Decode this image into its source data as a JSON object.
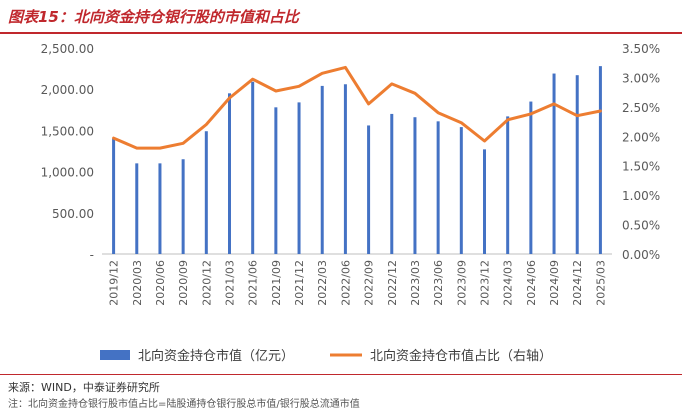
{
  "title": "图表15：北向资金持仓银行股的市值和占比",
  "chart_data": {
    "type": "bar",
    "categories": [
      "2019/12",
      "2020/03",
      "2020/06",
      "2020/09",
      "2020/12",
      "2021/03",
      "2021/06",
      "2021/09",
      "2021/12",
      "2022/03",
      "2022/06",
      "2022/09",
      "2022/12",
      "2023/03",
      "2023/06",
      "2023/09",
      "2023/12",
      "2024/03",
      "2024/06",
      "2024/09",
      "2024/12",
      "2025/03"
    ],
    "series": [
      {
        "name": "北向资金持仓市值（亿元）",
        "type": "bar",
        "axis": "left",
        "color": "#4472c4",
        "values": [
          1400,
          1100,
          1100,
          1150,
          1490,
          1950,
          2090,
          1780,
          1840,
          2040,
          2060,
          1560,
          1700,
          1660,
          1610,
          1540,
          1270,
          1670,
          1850,
          2190,
          2170,
          2280
        ]
      },
      {
        "name": "北向资金持仓市值占比（右轴）",
        "type": "line",
        "axis": "right",
        "color": "#ed7d31",
        "values": [
          1.97,
          1.8,
          1.8,
          1.88,
          2.2,
          2.65,
          2.97,
          2.77,
          2.85,
          3.07,
          3.17,
          2.55,
          2.89,
          2.73,
          2.4,
          2.23,
          1.92,
          2.28,
          2.38,
          2.55,
          2.35,
          2.43
        ]
      }
    ],
    "y_left": {
      "min": 0,
      "max": 2500,
      "ticks": [
        "-",
        "500.00",
        "1,000.00",
        "1,500.00",
        "2,000.00",
        "2,500.00"
      ]
    },
    "y_right": {
      "min": 0,
      "max": 3.5,
      "ticks": [
        "0.00%",
        "0.50%",
        "1.00%",
        "1.50%",
        "2.00%",
        "2.50%",
        "3.00%",
        "3.50%"
      ]
    },
    "grid": false,
    "legend": "bottom"
  },
  "source": "来源：WIND，中泰证券研究所",
  "note": "注：北向资金持仓银行股市值占比=陆股通持仓银行股总市值/银行股总流通市值"
}
